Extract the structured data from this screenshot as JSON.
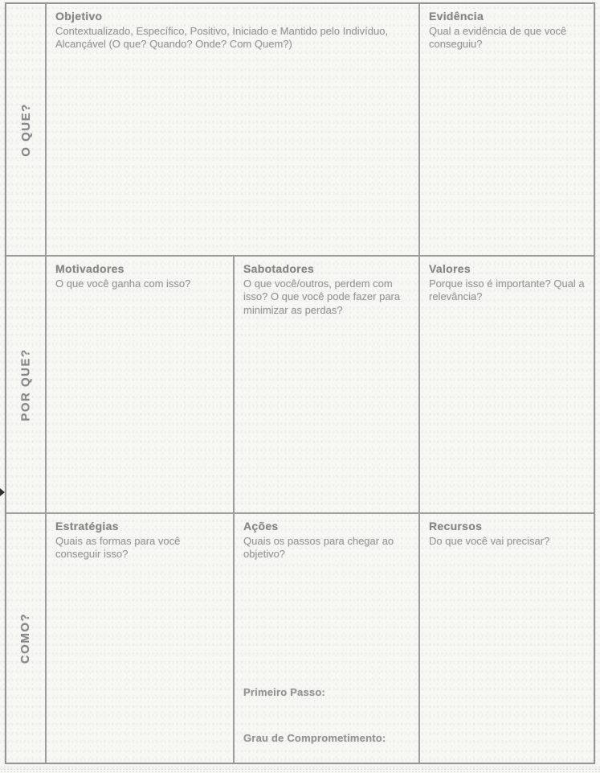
{
  "document": {
    "kind": "goal-setting-worksheet",
    "language": "pt-BR",
    "paper_color": "#f7f7f4",
    "line_color": "#9d9d9d",
    "text_color": "#8e8e8e"
  },
  "table": {
    "rows": [
      {
        "label": "O QUE?",
        "cells": [
          {
            "title": "Objetivo",
            "subtitle": "Contextualizado, Específico, Positivo, Iniciado e Mantido pelo Indivíduo, Alcançável (O que? Quando? Onde? Com Quem?)"
          },
          {
            "title": "Evidência",
            "subtitle": "Qual a evidência de que você conseguiu?"
          }
        ]
      },
      {
        "label": "POR QUE?",
        "cells": [
          {
            "title": "Motivadores",
            "subtitle": "O que você ganha com isso?"
          },
          {
            "title": "Sabotadores",
            "subtitle": "O que você/outros, perdem com isso? O que você pode fazer para minimizar as perdas?"
          },
          {
            "title": "Valores",
            "subtitle": "Porque isso é importante? Qual a relevância?"
          }
        ]
      },
      {
        "label": "COMO?",
        "cells": [
          {
            "title": "Estratégias",
            "subtitle": "Quais as formas para você conseguir isso?"
          },
          {
            "title": "Ações",
            "subtitle": "Quais os passos para chegar ao objetivo?",
            "footer": [
              "Primeiro Passo:",
              "Grau de Comprometimento:"
            ]
          },
          {
            "title": "Recursos",
            "subtitle": "Do que você vai precisar?"
          }
        ]
      }
    ]
  }
}
